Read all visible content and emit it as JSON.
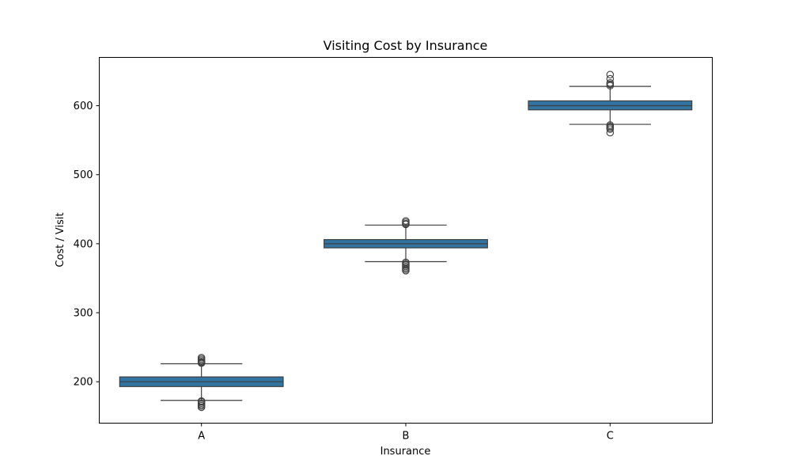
{
  "chart_data": {
    "type": "box",
    "title": "Visiting Cost by Insurance",
    "xlabel": "Insurance",
    "ylabel": "Cost / Visit",
    "categories": [
      "A",
      "B",
      "C"
    ],
    "ylim": [
      140,
      670
    ],
    "yticks": [
      200,
      300,
      400,
      500,
      600
    ],
    "grid": false,
    "box_color": "#3274a1",
    "line_color": "#3f3f3f",
    "boxes": [
      {
        "category": "A",
        "whisker_low": 173,
        "q1": 193,
        "median": 200,
        "q3": 207,
        "whisker_high": 226,
        "outliers": [
          163,
          165,
          167,
          169,
          171,
          172,
          227,
          228,
          229,
          231,
          233,
          235
        ]
      },
      {
        "category": "B",
        "whisker_low": 374,
        "q1": 394,
        "median": 400,
        "q3": 406,
        "whisker_high": 427,
        "outliers": [
          361,
          363,
          365,
          367,
          369,
          371,
          373,
          428,
          429,
          431,
          433
        ]
      },
      {
        "category": "C",
        "whisker_low": 573,
        "q1": 594,
        "median": 600,
        "q3": 607,
        "whisker_high": 628,
        "outliers": [
          561,
          566,
          568,
          570,
          572,
          629,
          631,
          633,
          639,
          645
        ]
      }
    ]
  }
}
